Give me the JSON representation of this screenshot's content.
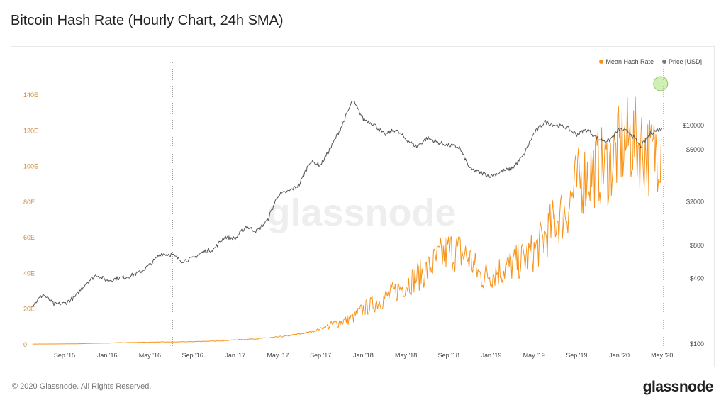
{
  "title": "Bitcoin Hash Rate (Hourly Chart, 24h SMA)",
  "footer": "© 2020 Glassnode. All Rights Reserved.",
  "logo": "glassnode",
  "watermark": "glassnode",
  "chart_data": {
    "type": "line",
    "title": "Bitcoin Hash Rate (Hourly Chart, 24h SMA)",
    "legend_position": "top-right",
    "grid": false,
    "x_ticks": [
      "Sep '15",
      "Jan '16",
      "May '16",
      "Sep '16",
      "Jan '17",
      "May '17",
      "Sep '17",
      "Jan '18",
      "May '18",
      "Sep '18",
      "Jan '19",
      "May '19",
      "Sep '19",
      "Jan '20",
      "May '20"
    ],
    "y_left": {
      "ticks": [
        "0",
        "20E",
        "40E",
        "60E",
        "80E",
        "100E",
        "120E",
        "140E"
      ],
      "range": [
        0,
        140
      ],
      "color": "#c98b3a"
    },
    "y_right": {
      "ticks": [
        "$100",
        "$400",
        "$800",
        "$2000",
        "$6000",
        "$10000"
      ],
      "scale": "log",
      "range": [
        100,
        20000
      ]
    },
    "vertical_markers": [
      "2016-07",
      "2020-05"
    ],
    "highlight_marker": "2020-05",
    "dates": [
      "2015-06",
      "2015-07",
      "2015-08",
      "2015-09",
      "2015-10",
      "2015-11",
      "2015-12",
      "2016-01",
      "2016-02",
      "2016-03",
      "2016-04",
      "2016-05",
      "2016-06",
      "2016-07",
      "2016-08",
      "2016-09",
      "2016-10",
      "2016-11",
      "2016-12",
      "2017-01",
      "2017-02",
      "2017-03",
      "2017-04",
      "2017-05",
      "2017-06",
      "2017-07",
      "2017-08",
      "2017-09",
      "2017-10",
      "2017-11",
      "2017-12",
      "2018-01",
      "2018-02",
      "2018-03",
      "2018-04",
      "2018-05",
      "2018-06",
      "2018-07",
      "2018-08",
      "2018-09",
      "2018-10",
      "2018-11",
      "2018-12",
      "2019-01",
      "2019-02",
      "2019-03",
      "2019-04",
      "2019-05",
      "2019-06",
      "2019-07",
      "2019-08",
      "2019-09",
      "2019-10",
      "2019-11",
      "2019-12",
      "2020-01",
      "2020-02",
      "2020-03",
      "2020-04",
      "2020-05"
    ],
    "series": [
      {
        "name": "Mean Hash Rate",
        "color": "#f7931a",
        "axis": "left",
        "values": [
          0.35,
          0.38,
          0.4,
          0.45,
          0.5,
          0.65,
          0.8,
          0.9,
          1.1,
          1.2,
          1.3,
          1.4,
          1.5,
          1.5,
          1.6,
          1.7,
          1.9,
          2.0,
          2.3,
          2.7,
          3.0,
          3.3,
          3.8,
          4.3,
          5.0,
          6.0,
          7.0,
          9.0,
          11,
          13,
          15,
          20,
          23,
          26,
          30,
          34,
          38,
          42,
          48,
          53,
          52,
          48,
          38,
          40,
          42,
          45,
          48,
          52,
          60,
          70,
          75,
          90,
          95,
          100,
          100,
          110,
          115,
          112,
          105,
          115
        ]
      },
      {
        "name": "Price [USD]",
        "color": "#555555",
        "axis": "right",
        "values": [
          225,
          285,
          230,
          235,
          270,
          360,
          430,
          380,
          400,
          415,
          450,
          530,
          670,
          660,
          575,
          605,
          700,
          740,
          960,
          920,
          1190,
          1080,
          1350,
          2300,
          2500,
          2870,
          4700,
          4340,
          6400,
          10000,
          17000,
          11500,
          10300,
          8200,
          9200,
          7500,
          6400,
          7700,
          7000,
          6600,
          6300,
          4000,
          3700,
          3450,
          3800,
          4100,
          5300,
          8500,
          10800,
          10100,
          9600,
          8300,
          9200,
          7500,
          7200,
          9300,
          8600,
          6400,
          8600,
          9500
        ]
      }
    ]
  }
}
